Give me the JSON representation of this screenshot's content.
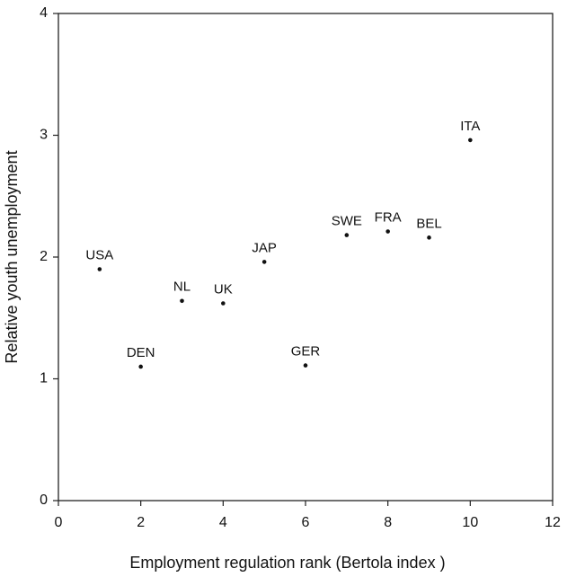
{
  "chart_data": {
    "type": "scatter",
    "xlabel": "Employment regulation rank (Bertola index )",
    "ylabel": "Relative youth unemployment",
    "labels": [
      "USA",
      "DEN",
      "NL",
      "UK",
      "JAP",
      "GER",
      "SWE",
      "FRA",
      "BEL",
      "ITA"
    ],
    "x": [
      1,
      2,
      3,
      4,
      5,
      6,
      7,
      8,
      9,
      10
    ],
    "values": [
      1.9,
      1.1,
      1.64,
      1.62,
      1.96,
      1.11,
      2.18,
      2.21,
      2.16,
      2.96
    ],
    "color": "#111111",
    "xlim": [
      0,
      12
    ],
    "xticks": [
      0,
      2,
      4,
      6,
      8,
      10,
      12
    ],
    "ylim": [
      0,
      4
    ],
    "yticks": [
      0,
      1,
      2,
      3,
      4
    ],
    "grid": false
  }
}
